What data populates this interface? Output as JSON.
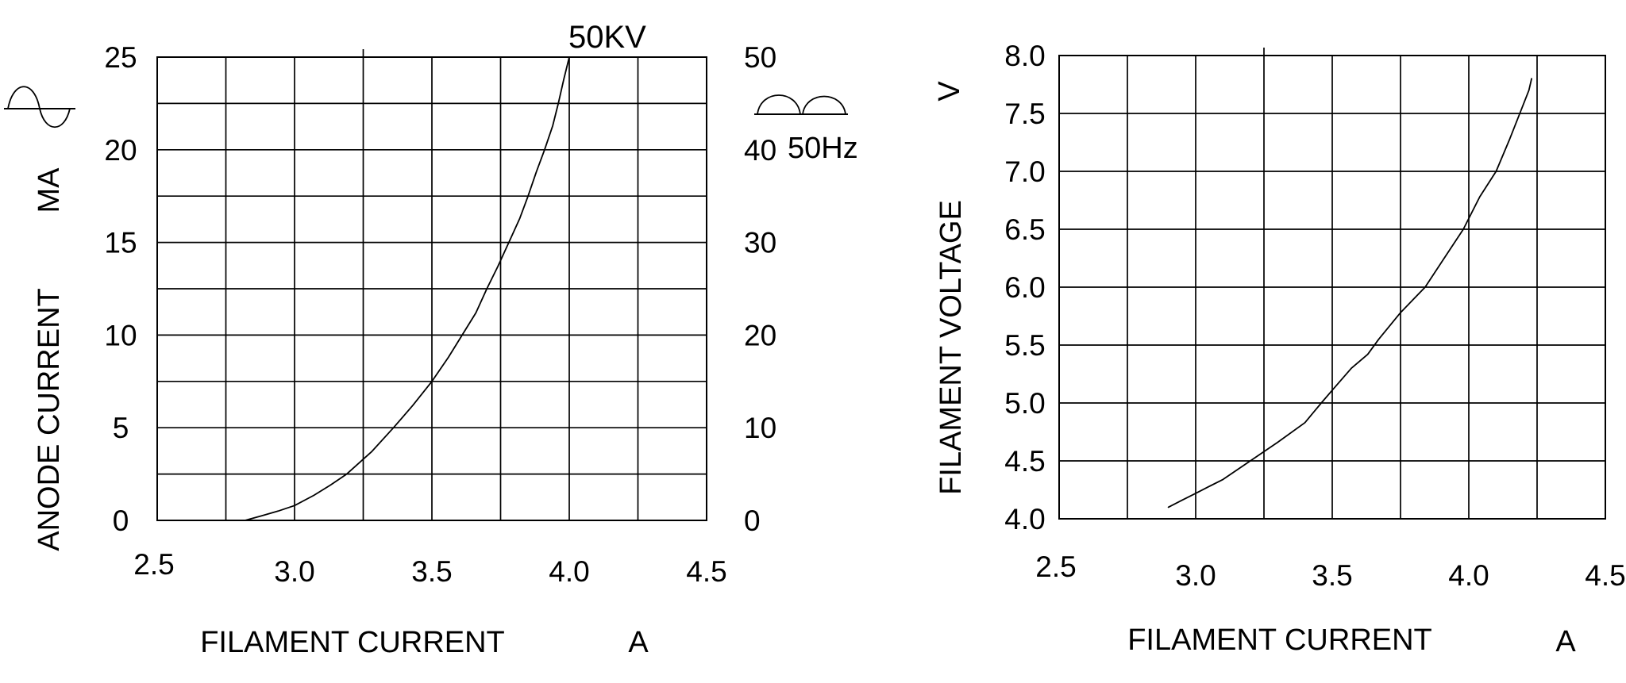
{
  "page": {
    "background_color": "#ffffff",
    "line_color": "#000000"
  },
  "icons": {
    "sine_wave": "sine-wave-icon (one full AC cycle on baseline)",
    "full_wave_rectified": "full-wave-rectified-icon (two half-sine humps on baseline)"
  },
  "chart_data": [
    {
      "type": "line",
      "title": "",
      "xlabel": "FILAMENT CURRENT",
      "x_unit": "A",
      "ylabel": "ANODE CURRENT",
      "y_unit": "MA",
      "curve_label": "50KV",
      "waveform_note": "50Hz",
      "xlim": [
        2.5,
        4.5
      ],
      "ylim": [
        0,
        25
      ],
      "y2lim": [
        0,
        50
      ],
      "x_minor_step": 0.25,
      "y_minor_step": 2.5,
      "grid": true,
      "x_tick_labels": [
        "2.5",
        "3.0",
        "3.5",
        "4.0",
        "4.5"
      ],
      "y_tick_labels": [
        "25",
        "20",
        "15",
        "10",
        "5",
        "0"
      ],
      "y2_tick_labels": [
        "50",
        "40",
        "30",
        "20",
        "10",
        "0"
      ],
      "series": [
        {
          "name": "50KV",
          "x": [
            2.82,
            2.88,
            2.94,
            3.0,
            3.07,
            3.13,
            3.19,
            3.28,
            3.36,
            3.43,
            3.5,
            3.56,
            3.61,
            3.66,
            3.7,
            3.74,
            3.78,
            3.82,
            3.85,
            3.88,
            3.91,
            3.94,
            3.96,
            3.98,
            4.0
          ],
          "y": [
            0,
            0.25,
            0.5,
            0.8,
            1.35,
            1.9,
            2.5,
            3.7,
            5.0,
            6.2,
            7.5,
            8.8,
            10.0,
            11.2,
            12.5,
            13.7,
            15.0,
            16.3,
            17.5,
            18.8,
            20.0,
            21.3,
            22.5,
            23.8,
            25.0
          ]
        }
      ]
    },
    {
      "type": "line",
      "title": "",
      "xlabel": "FILAMENT CURRENT",
      "x_unit": "A",
      "ylabel": "FILAMENT VOLTAGE",
      "y_unit": "V",
      "xlim": [
        2.5,
        4.5
      ],
      "ylim": [
        4.0,
        8.0
      ],
      "x_minor_step": 0.25,
      "y_minor_step": 0.5,
      "grid": true,
      "x_tick_labels": [
        "2.5",
        "3.0",
        "3.5",
        "4.0",
        "4.5"
      ],
      "y_tick_labels": [
        "8.0",
        "7.5",
        "7.0",
        "6.5",
        "6.0",
        "5.5",
        "5.0",
        "4.5",
        "4.0"
      ],
      "series": [
        {
          "name": "",
          "x": [
            2.9,
            2.95,
            3.0,
            3.05,
            3.1,
            3.2,
            3.3,
            3.4,
            3.46,
            3.5,
            3.57,
            3.63,
            3.67,
            3.75,
            3.84,
            3.91,
            3.98,
            4.04,
            4.1,
            4.15,
            4.19,
            4.22,
            4.23
          ],
          "y": [
            4.1,
            4.16,
            4.22,
            4.28,
            4.34,
            4.5,
            4.66,
            4.83,
            5.0,
            5.11,
            5.3,
            5.42,
            5.55,
            5.78,
            6.0,
            6.25,
            6.5,
            6.78,
            7.0,
            7.28,
            7.52,
            7.7,
            7.8
          ]
        }
      ]
    }
  ]
}
